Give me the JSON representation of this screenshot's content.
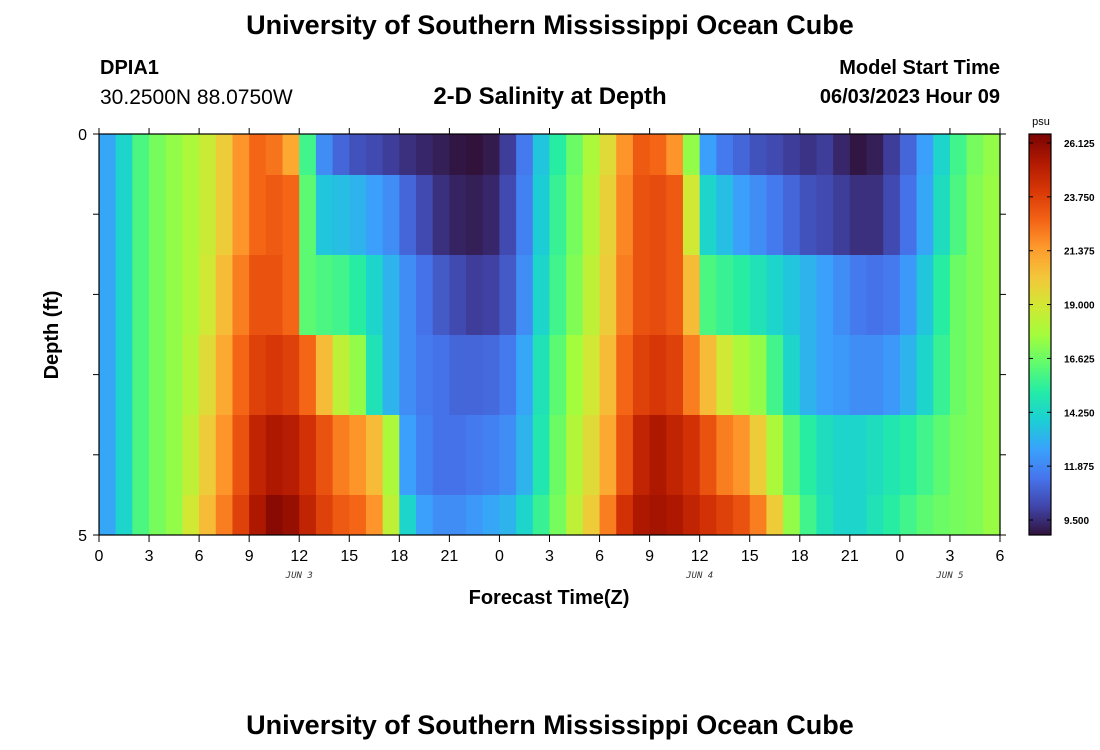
{
  "header": {
    "title": "University of Southern Mississippi Ocean Cube",
    "station_id": "DPIA1",
    "station_coords": "30.2500N  88.0750W",
    "chart_title": "2-D Salinity at Depth",
    "model_start_label": "Model Start Time",
    "model_start_value": "06/03/2023 Hour 09"
  },
  "footer": {
    "title": "University of Southern Mississippi Ocean Cube"
  },
  "chart_data": {
    "type": "heatmap",
    "title": "2-D Salinity at Depth",
    "xlabel": "Forecast Time(Z)",
    "ylabel": "Depth (ft)",
    "y_range": [
      0,
      5
    ],
    "y_tick_labels": [
      "0",
      "5"
    ],
    "x_tick_labels": [
      "0",
      "3",
      "6",
      "9",
      "12",
      "15",
      "18",
      "21",
      "0",
      "3",
      "6",
      "9",
      "12",
      "15",
      "18",
      "21",
      "0",
      "3",
      "6"
    ],
    "date_labels": [
      {
        "text": "JUN 3",
        "hour": 12
      },
      {
        "text": "JUN 4",
        "hour": 36
      },
      {
        "text": "JUN 5",
        "hour": 51
      }
    ],
    "x_hours_range": [
      0,
      54
    ],
    "time_step_hours": 1,
    "colorbar": {
      "unit": "psu",
      "min": 9.5,
      "max": 26.125,
      "tick_labels": [
        "26.125",
        "23.750",
        "21.375",
        "19.000",
        "16.625",
        "14.250",
        "11.875",
        "9.500"
      ],
      "tick_values": [
        26.125,
        23.75,
        21.375,
        19.0,
        16.625,
        14.25,
        11.875,
        9.5
      ],
      "colors": [
        "#30123b",
        "#4145ab",
        "#4675ed",
        "#39a2fc",
        "#1bcfd4",
        "#24eca6",
        "#61fc6c",
        "#a4fc3b",
        "#d1e834",
        "#f3c63a",
        "#fe9b2d",
        "#f36315",
        "#d93806",
        "#b11901",
        "#7a0402"
      ]
    },
    "depth_rows": [
      {
        "depth_range": "0-0.5 ft",
        "hourly_salinity": [
          13.2,
          14.5,
          16.2,
          17.0,
          17.5,
          18.0,
          18.8,
          20.0,
          21.5,
          22.5,
          22.2,
          21.0,
          16.0,
          12.5,
          11.5,
          11.0,
          10.8,
          10.5,
          10.2,
          10.0,
          9.8,
          9.6,
          9.5,
          9.7,
          10.5,
          12.0,
          14.0,
          15.5,
          16.8,
          18.0,
          19.5,
          21.5,
          22.8,
          22.5,
          21.5,
          17.5,
          13.0,
          12.0,
          11.5,
          11.0,
          10.8,
          10.5,
          10.3,
          10.5,
          10.0,
          9.6,
          9.8,
          10.5,
          11.5,
          13.0,
          14.5,
          16.0,
          17.0,
          17.5
        ]
      },
      {
        "depth_range": "0.5-1.5 ft",
        "hourly_salinity": [
          13.2,
          14.5,
          16.2,
          17.0,
          17.5,
          18.0,
          18.8,
          20.0,
          21.5,
          22.5,
          22.8,
          22.5,
          16.5,
          14.0,
          13.8,
          13.5,
          13.0,
          12.5,
          11.5,
          10.8,
          10.2,
          9.9,
          9.8,
          10.0,
          10.8,
          12.2,
          14.2,
          15.8,
          17.0,
          18.2,
          19.8,
          21.8,
          23.0,
          23.2,
          22.8,
          19.0,
          14.5,
          13.8,
          13.0,
          12.5,
          12.0,
          11.5,
          11.0,
          10.8,
          10.5,
          10.2,
          10.2,
          10.8,
          11.8,
          13.2,
          14.8,
          16.2,
          17.2,
          17.6
        ]
      },
      {
        "depth_range": "1.5-2.5 ft",
        "hourly_salinity": [
          13.2,
          14.5,
          16.2,
          17.0,
          17.5,
          18.0,
          19.0,
          20.5,
          22.0,
          23.0,
          23.0,
          22.5,
          16.5,
          16.2,
          16.0,
          15.5,
          14.5,
          13.5,
          12.5,
          11.8,
          11.2,
          10.8,
          10.5,
          10.6,
          11.2,
          12.5,
          14.5,
          16.0,
          17.2,
          18.5,
          20.0,
          22.0,
          23.0,
          23.2,
          22.8,
          20.5,
          16.2,
          15.8,
          15.5,
          15.0,
          14.5,
          14.0,
          13.5,
          13.0,
          12.5,
          12.0,
          11.8,
          12.0,
          12.8,
          14.0,
          15.5,
          16.8,
          17.2,
          17.6
        ]
      },
      {
        "depth_range": "2.5-3.5 ft",
        "hourly_salinity": [
          13.2,
          14.5,
          16.2,
          17.0,
          17.5,
          18.2,
          19.5,
          21.0,
          22.5,
          23.5,
          23.8,
          23.5,
          22.5,
          20.5,
          18.5,
          17.5,
          15.0,
          13.5,
          12.5,
          12.0,
          11.8,
          11.5,
          11.5,
          11.6,
          12.0,
          13.2,
          15.0,
          16.5,
          17.8,
          19.0,
          20.5,
          22.5,
          23.5,
          23.8,
          23.5,
          22.0,
          20.5,
          19.0,
          18.0,
          17.5,
          16.0,
          14.5,
          13.5,
          13.0,
          12.8,
          12.5,
          12.5,
          12.8,
          13.5,
          14.5,
          15.8,
          16.8,
          17.2,
          17.6
        ]
      },
      {
        "depth_range": "3.5-4.5 ft",
        "hourly_salinity": [
          13.2,
          14.5,
          16.2,
          17.0,
          17.5,
          18.5,
          20.0,
          21.5,
          23.0,
          24.5,
          25.0,
          24.8,
          24.0,
          23.0,
          22.0,
          21.5,
          20.5,
          18.0,
          13.0,
          12.2,
          11.8,
          11.8,
          12.0,
          12.2,
          12.5,
          13.5,
          15.2,
          16.8,
          18.2,
          19.5,
          21.0,
          23.0,
          24.5,
          25.0,
          24.5,
          24.0,
          23.0,
          22.0,
          21.5,
          20.0,
          18.0,
          16.5,
          15.5,
          14.8,
          14.5,
          14.5,
          14.8,
          15.2,
          15.5,
          16.0,
          16.5,
          17.0,
          17.2,
          17.6
        ]
      },
      {
        "depth_range": "4.5-5 ft",
        "hourly_salinity": [
          13.2,
          14.5,
          16.2,
          17.0,
          17.5,
          19.0,
          20.5,
          22.0,
          23.5,
          25.0,
          25.8,
          25.5,
          24.5,
          23.5,
          22.8,
          22.5,
          21.5,
          18.5,
          14.5,
          13.0,
          12.5,
          12.5,
          12.8,
          13.2,
          13.5,
          14.5,
          15.8,
          17.0,
          18.5,
          20.0,
          22.0,
          24.0,
          25.0,
          25.2,
          25.0,
          24.5,
          24.0,
          23.5,
          23.0,
          22.0,
          20.0,
          17.5,
          16.0,
          15.0,
          14.5,
          14.5,
          15.0,
          15.5,
          16.0,
          16.5,
          16.8,
          17.0,
          17.2,
          17.6
        ]
      }
    ]
  }
}
